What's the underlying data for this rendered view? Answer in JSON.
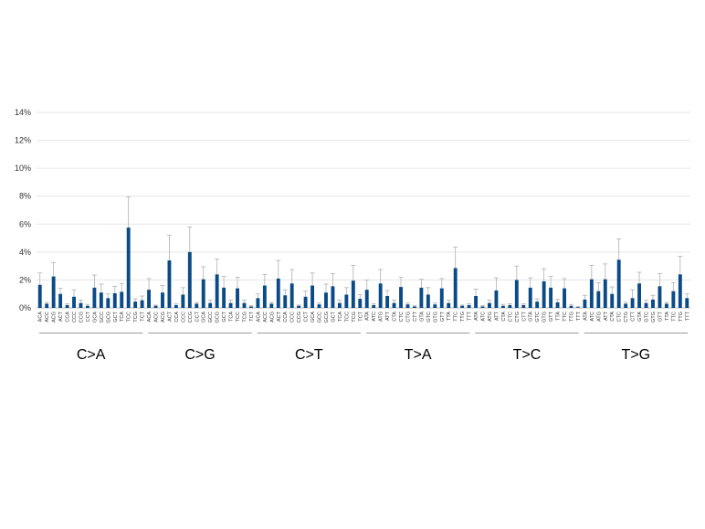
{
  "chart_data": {
    "type": "bar",
    "title": "",
    "xlabel": "",
    "ylabel": "",
    "ylim": [
      0,
      14
    ],
    "y_ticks": [
      "0%",
      "2%",
      "4%",
      "6%",
      "8%",
      "10%",
      "12%",
      "14%"
    ],
    "y_tick_values": [
      0,
      2,
      4,
      6,
      8,
      10,
      12,
      14
    ],
    "grid": true,
    "error_bars": true,
    "colors": {
      "bar": "#0a4a86",
      "error": "#b0b0b0",
      "grid": "#e6e6e6",
      "divider": "#9a9a9a"
    },
    "groups": [
      {
        "name": "C>A",
        "contexts": [
          "ACA",
          "ACC",
          "ACG",
          "ACT",
          "CCA",
          "CCC",
          "CCG",
          "CCT",
          "GCA",
          "GCC",
          "GCG",
          "GCT",
          "TCA",
          "TCC",
          "TCG",
          "TCT"
        ],
        "values": [
          1.65,
          0.3,
          2.25,
          1.0,
          0.2,
          0.8,
          0.35,
          0.15,
          1.45,
          1.1,
          0.7,
          1.05,
          1.15,
          5.75,
          0.45,
          0.55
        ],
        "errors": [
          0.85,
          0.1,
          1.0,
          0.4,
          0.1,
          0.5,
          0.2,
          0.1,
          0.9,
          0.6,
          0.3,
          0.5,
          0.6,
          2.2,
          0.2,
          0.3
        ]
      },
      {
        "name": "C>G",
        "contexts": [
          "ACA",
          "ACC",
          "ACG",
          "ACT",
          "CCA",
          "CCC",
          "CCG",
          "CCT",
          "GCA",
          "GCC",
          "GCG",
          "GCT",
          "TCA",
          "TCC",
          "TCG",
          "TCT"
        ],
        "values": [
          1.3,
          0.15,
          1.1,
          3.4,
          0.2,
          0.95,
          4.0,
          0.3,
          2.05,
          0.35,
          2.4,
          1.45,
          0.35,
          1.4,
          0.35,
          0.1
        ],
        "errors": [
          0.8,
          0.05,
          0.5,
          1.8,
          0.1,
          0.5,
          1.8,
          0.1,
          0.9,
          0.2,
          1.1,
          0.8,
          0.2,
          0.8,
          0.2,
          0.05
        ]
      },
      {
        "name": "C>T",
        "contexts": [
          "ACA",
          "ACC",
          "ACG",
          "ACT",
          "CCA",
          "CCC",
          "CCG",
          "CCT",
          "GCA",
          "GCC",
          "GCG",
          "GCT",
          "TCA",
          "TCC",
          "TCG",
          "TCT"
        ],
        "values": [
          0.7,
          1.6,
          0.3,
          2.1,
          0.9,
          1.75,
          0.15,
          0.8,
          1.6,
          0.25,
          1.1,
          1.55,
          0.35,
          0.95,
          1.95,
          0.65
        ],
        "errors": [
          0.3,
          0.8,
          0.1,
          1.3,
          0.4,
          1.0,
          0.05,
          0.4,
          0.9,
          0.1,
          0.6,
          0.9,
          0.2,
          0.5,
          1.1,
          0.3
        ]
      },
      {
        "name": "T>A",
        "contexts": [
          "ATA",
          "ATC",
          "ATG",
          "ATT",
          "CTA",
          "CTC",
          "CTG",
          "CTT",
          "GTA",
          "GTC",
          "GTG",
          "GTT",
          "TTA",
          "TTC",
          "TTG",
          "TTT"
        ],
        "values": [
          1.3,
          0.2,
          1.75,
          0.85,
          0.35,
          1.5,
          0.25,
          0.1,
          1.45,
          0.95,
          0.25,
          1.4,
          0.35,
          2.85,
          0.15,
          0.2
        ],
        "errors": [
          0.7,
          0.1,
          1.0,
          0.4,
          0.2,
          0.7,
          0.1,
          0.05,
          0.6,
          0.5,
          0.1,
          0.7,
          0.2,
          1.5,
          0.05,
          0.1
        ]
      },
      {
        "name": "T>C",
        "contexts": [
          "ATA",
          "ATC",
          "ATG",
          "ATT",
          "CTA",
          "CTC",
          "CTG",
          "CTT",
          "GTA",
          "GTC",
          "GTG",
          "GTT",
          "TTA",
          "TTC",
          "TTG",
          "TTT"
        ],
        "values": [
          0.85,
          0.1,
          0.35,
          1.25,
          0.15,
          0.2,
          2.0,
          0.2,
          1.45,
          0.45,
          1.9,
          1.45,
          0.4,
          1.4,
          0.15,
          0.05
        ],
        "errors": [
          0.5,
          0.05,
          0.2,
          0.9,
          0.1,
          0.1,
          1.0,
          0.1,
          0.7,
          0.2,
          0.9,
          0.8,
          0.2,
          0.7,
          0.1,
          0.05
        ]
      },
      {
        "name": "T>G",
        "contexts": [
          "ATA",
          "ATC",
          "ATG",
          "ATT",
          "CTA",
          "CTC",
          "CTG",
          "CTT",
          "GTA",
          "GTC",
          "GTG",
          "GTT",
          "TTA",
          "TTC",
          "TTG",
          "TTT"
        ],
        "values": [
          0.6,
          2.05,
          1.2,
          2.05,
          1.0,
          3.45,
          0.3,
          0.7,
          1.75,
          0.35,
          0.6,
          1.55,
          0.3,
          1.2,
          2.4,
          0.7
        ],
        "errors": [
          0.3,
          1.0,
          0.6,
          1.1,
          0.5,
          1.5,
          0.1,
          0.6,
          0.8,
          0.2,
          0.3,
          0.9,
          0.1,
          0.6,
          1.3,
          0.3
        ]
      }
    ]
  }
}
